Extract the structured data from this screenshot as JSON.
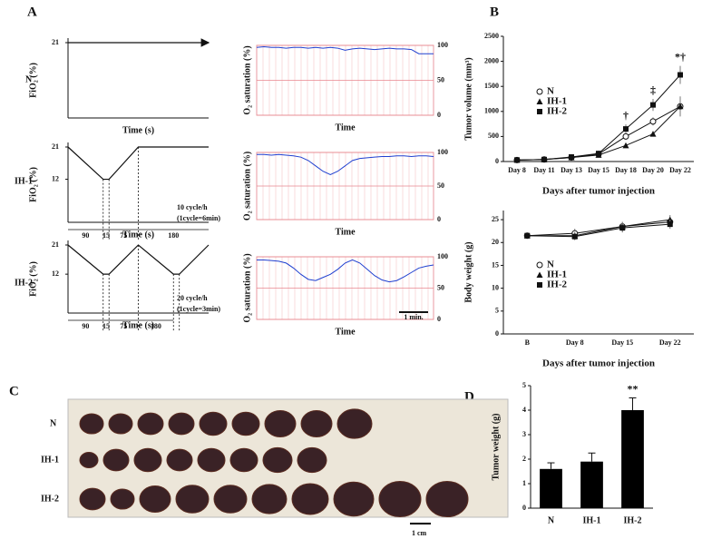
{
  "panel_labels": [
    "A",
    "B",
    "C",
    "D"
  ],
  "row_labels": [
    "N",
    "IH-1",
    "IH-2"
  ],
  "photo": {
    "row_labels": [
      "N",
      "IH-1",
      "IH-2"
    ],
    "scale_bar": "1 cm"
  },
  "chart_data": [
    {
      "type": "fio2",
      "y_label": "FiO₂ (%)",
      "x_label": "Time (s)",
      "x": [
        0,
        360
      ],
      "values": [
        21,
        21
      ],
      "xlim": [
        0,
        360
      ],
      "ylim": [
        0,
        21
      ],
      "yticks": [
        21
      ],
      "arrow": true
    },
    {
      "type": "fio2",
      "y_label": "FiO₂ (%)",
      "x_label": "Time (s)",
      "x": [
        0,
        90,
        105,
        180,
        360
      ],
      "values": [
        21,
        12,
        12,
        21,
        21
      ],
      "xlim": [
        0,
        360
      ],
      "ylim": [
        0,
        21
      ],
      "yticks": [
        21,
        12
      ],
      "segment_labels": [
        "90",
        "15",
        "75",
        "180"
      ],
      "note": [
        "10 cycle/h",
        "(1cycle=6min)"
      ]
    },
    {
      "type": "fio2",
      "y_label": "FiO₂ (%)",
      "x_label": "Time (s)",
      "x": [
        0,
        90,
        105,
        180,
        270,
        285,
        360
      ],
      "values": [
        21,
        12,
        12,
        21,
        12,
        12,
        21
      ],
      "xlim": [
        0,
        360
      ],
      "ylim": [
        0,
        21
      ],
      "yticks": [
        21,
        12
      ],
      "segment_labels": [
        "90",
        "15",
        "75",
        "180"
      ],
      "note": [
        "20 cycle/h",
        "(1cycle=3min)"
      ]
    },
    {
      "type": "sat",
      "y_label": "O₂ saturation (%)",
      "x_label": "Time",
      "color": "#2040d0",
      "ylim": [
        0,
        100
      ],
      "yticks": [
        0,
        50,
        100
      ],
      "values": [
        97,
        98,
        97,
        97,
        96,
        97,
        97,
        96,
        97,
        96,
        97,
        96,
        93,
        95,
        96,
        95,
        94,
        95,
        96,
        95,
        95,
        94,
        88,
        88,
        88
      ]
    },
    {
      "type": "sat",
      "y_label": "O₂ saturation (%)",
      "x_label": "Time",
      "color": "#2040d0",
      "ylim": [
        0,
        100
      ],
      "yticks": [
        0,
        50,
        100
      ],
      "values": [
        97,
        97,
        96,
        97,
        96,
        95,
        93,
        88,
        80,
        72,
        67,
        72,
        80,
        88,
        91,
        92,
        93,
        94,
        94,
        95,
        95,
        94,
        95,
        95,
        94
      ]
    },
    {
      "type": "sat",
      "y_label": "O₂ saturation (%)",
      "x_label": "Time",
      "color": "#2040d0",
      "ylim": [
        0,
        100
      ],
      "yticks": [
        0,
        50,
        100
      ],
      "values": [
        95,
        95,
        94,
        93,
        90,
        82,
        72,
        64,
        62,
        67,
        72,
        80,
        90,
        95,
        90,
        80,
        70,
        63,
        60,
        62,
        68,
        75,
        82,
        85,
        87
      ],
      "scale_bar": "1 min."
    },
    {
      "type": "line",
      "y_label": "Tumor volume (mm³)",
      "x_label": "Days after tumor injection",
      "categories": [
        "Day 8",
        "Day 11",
        "Day 13",
        "Day 15",
        "Day 18",
        "Day 20",
        "Day 22"
      ],
      "ylim": [
        0,
        2500
      ],
      "yticks": [
        0,
        500,
        1000,
        1500,
        2000,
        2500
      ],
      "series": [
        {
          "name": "N",
          "color": "#111",
          "marker": "circle-open",
          "values": [
            30,
            40,
            80,
            150,
            500,
            800,
            1100
          ],
          "errors": [
            5,
            5,
            10,
            15,
            60,
            80,
            150
          ]
        },
        {
          "name": "IH-1",
          "color": "#111",
          "marker": "triangle",
          "values": [
            30,
            40,
            80,
            130,
            320,
            550,
            1100
          ],
          "errors": [
            5,
            5,
            10,
            15,
            40,
            50,
            200
          ]
        },
        {
          "name": "IH-2",
          "color": "#111",
          "marker": "square",
          "values": [
            30,
            40,
            90,
            160,
            650,
            1130,
            1730
          ],
          "errors": [
            5,
            5,
            10,
            20,
            90,
            120,
            180
          ]
        }
      ],
      "annotations": [
        {
          "text": "†",
          "category": "Day 18"
        },
        {
          "text": "‡",
          "category": "Day 20"
        },
        {
          "text": "*†",
          "category": "Day 22"
        }
      ]
    },
    {
      "type": "line",
      "y_label": "Body weight (g)",
      "x_label": "Days after tumor injection",
      "categories": [
        "B",
        "Day 8",
        "Day 15",
        "Day 22"
      ],
      "ylim": [
        0,
        27
      ],
      "yticks": [
        0,
        5,
        10,
        15,
        20,
        25
      ],
      "series": [
        {
          "name": "N",
          "color": "#111",
          "marker": "circle-open",
          "values": [
            21.5,
            22,
            23.5,
            24.5
          ],
          "errors": [
            0.5,
            1,
            1,
            1
          ]
        },
        {
          "name": "IH-1",
          "color": "#111",
          "marker": "triangle",
          "values": [
            21.5,
            21.5,
            23.5,
            25
          ],
          "errors": [
            0.5,
            0.8,
            1,
            1
          ]
        },
        {
          "name": "IH-2",
          "color": "#111",
          "marker": "square",
          "values": [
            21.5,
            21.3,
            23.2,
            24
          ],
          "errors": [
            0.5,
            0.8,
            1,
            1
          ]
        }
      ]
    },
    {
      "type": "bar",
      "y_label": "Tumor weight (g)",
      "categories": [
        "N",
        "IH-1",
        "IH-2"
      ],
      "values": [
        1.6,
        1.9,
        4.0
      ],
      "errors": [
        0.25,
        0.35,
        0.5
      ],
      "color": "#000",
      "ylim": [
        0,
        5
      ],
      "yticks": [
        0,
        1,
        2,
        3,
        4,
        5
      ],
      "annotations": [
        {
          "text": "**",
          "category": "IH-2"
        }
      ]
    }
  ]
}
